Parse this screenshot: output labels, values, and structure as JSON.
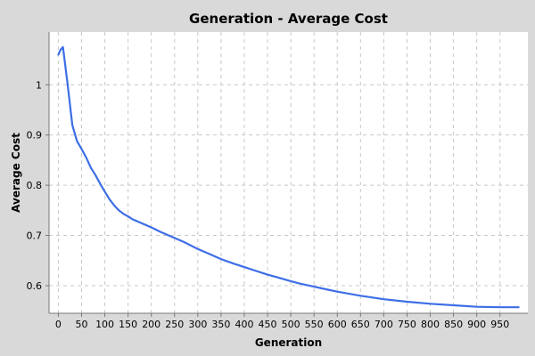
{
  "chart_data": {
    "type": "line",
    "title": "Generation - Average Cost",
    "xlabel": "Generation",
    "ylabel": "Average Cost",
    "xlim": [
      -20,
      1010
    ],
    "ylim": [
      0.545,
      1.105
    ],
    "xticks": [
      0,
      50,
      100,
      150,
      200,
      250,
      300,
      350,
      400,
      450,
      500,
      550,
      600,
      650,
      700,
      750,
      800,
      850,
      900,
      950
    ],
    "yticks": [
      0.6,
      0.7,
      0.8,
      0.9,
      1.0
    ],
    "ytick_labels": [
      "0.6",
      "0.7",
      "0.8",
      "0.9",
      "1"
    ],
    "grid": true,
    "colors": {
      "series": "#3d6ee6",
      "plot_background": "#ffffff",
      "page_background": "#d9d9d9"
    },
    "series": [
      {
        "x": [
          0,
          5,
          10,
          20,
          30,
          40,
          50,
          60,
          70,
          80,
          90,
          100,
          110,
          120,
          130,
          140,
          150,
          160,
          170,
          180,
          200,
          220,
          250,
          270,
          300,
          320,
          350,
          380,
          400,
          420,
          450,
          470,
          500,
          520,
          550,
          580,
          600,
          650,
          700,
          750,
          800,
          850,
          900,
          950,
          990
        ],
        "y": [
          1.06,
          1.07,
          1.075,
          1.0,
          0.92,
          0.888,
          0.872,
          0.855,
          0.835,
          0.82,
          0.803,
          0.787,
          0.772,
          0.76,
          0.75,
          0.743,
          0.738,
          0.732,
          0.728,
          0.724,
          0.716,
          0.707,
          0.695,
          0.687,
          0.673,
          0.665,
          0.653,
          0.643,
          0.637,
          0.631,
          0.622,
          0.617,
          0.609,
          0.604,
          0.598,
          0.592,
          0.588,
          0.58,
          0.573,
          0.568,
          0.564,
          0.561,
          0.558,
          0.557,
          0.557
        ]
      }
    ]
  }
}
